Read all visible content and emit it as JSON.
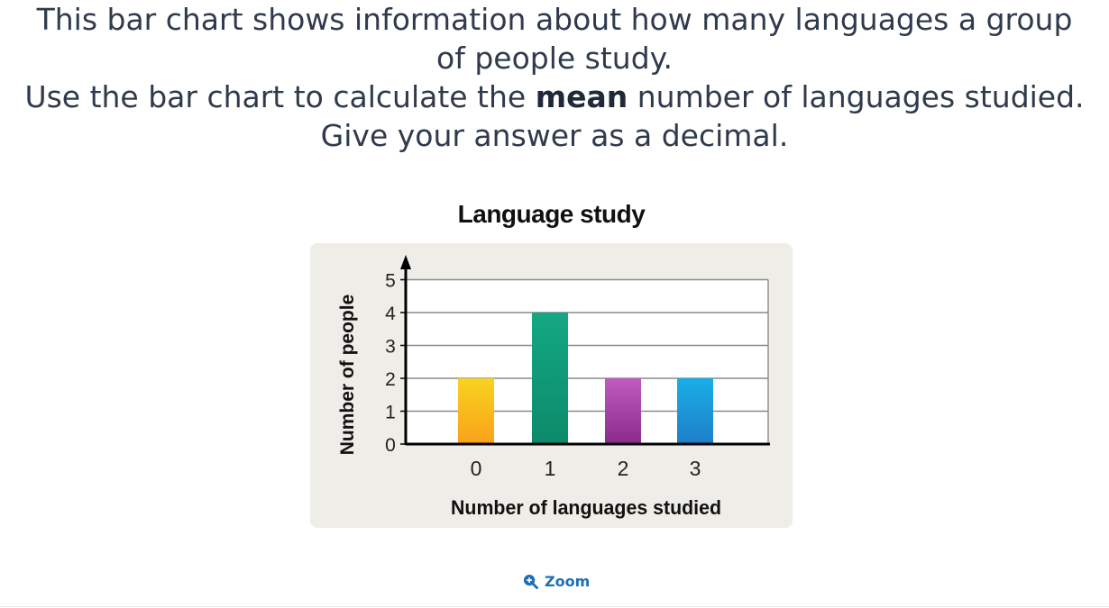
{
  "question": {
    "line1": "This bar chart shows information about how many languages a group",
    "line2": "of people study.",
    "line3_pre": "Use the bar chart to calculate the ",
    "line3_bold": "mean",
    "line3_post": " number of languages studied.",
    "line4": "Give your answer as a decimal."
  },
  "zoom_label": "Zoom",
  "chart_data": {
    "type": "bar",
    "title": "Language study",
    "xlabel": "Number of languages studied",
    "ylabel": "Number of people",
    "categories": [
      "0",
      "1",
      "2",
      "3"
    ],
    "values": [
      2,
      4,
      2,
      2
    ],
    "ylim": [
      0,
      5
    ],
    "yticks": [
      "0",
      "1",
      "2",
      "3",
      "4",
      "5"
    ],
    "grid": true,
    "colors": [
      [
        "#f7d320",
        "#fba11a"
      ],
      [
        "#14a883",
        "#0c8a6a"
      ],
      [
        "#c05cc0",
        "#8c2a8c"
      ],
      [
        "#1aaee6",
        "#1e7fc8"
      ]
    ]
  }
}
